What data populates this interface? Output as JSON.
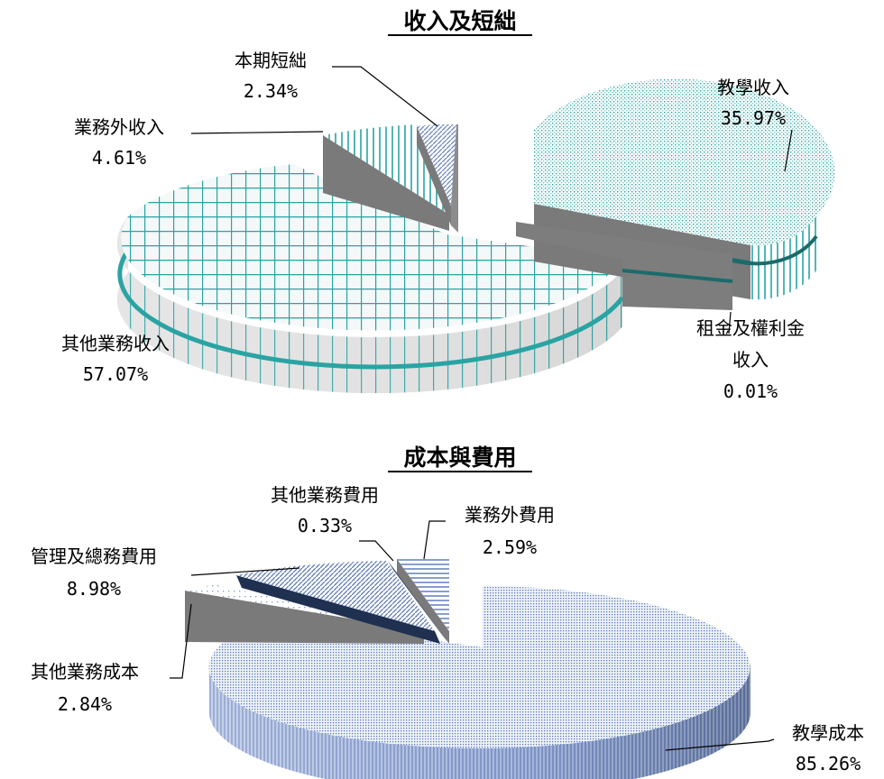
{
  "chart_data": [
    {
      "type": "pie",
      "title": "收入及短絀",
      "slices": [
        {
          "label": [
            "教學收入"
          ],
          "value": "35.97%",
          "pct": 35.97
        },
        {
          "label": [
            "租金及權利金",
            "收入"
          ],
          "value": "0.01%",
          "pct": 0.01
        },
        {
          "label": [
            "其他業務收入"
          ],
          "value": "57.07%",
          "pct": 57.07
        },
        {
          "label": [
            "業務外收入"
          ],
          "value": "4.61%",
          "pct": 4.61
        },
        {
          "label": [
            "本期短絀"
          ],
          "value": "2.34%",
          "pct": 2.34
        }
      ],
      "colors": {
        "accent": "#2aa3a3",
        "dark_band": "#1b6b6b",
        "side": "#8a8a8a"
      }
    },
    {
      "type": "pie",
      "title": "成本與費用",
      "slices": [
        {
          "label": [
            "教學成本"
          ],
          "value": "85.26%",
          "pct": 85.26
        },
        {
          "label": [
            "其他業務成本"
          ],
          "value": "2.84%",
          "pct": 2.84
        },
        {
          "label": [
            "管理及總務費用"
          ],
          "value": "8.98%",
          "pct": 8.98
        },
        {
          "label": [
            "其他業務費用"
          ],
          "value": "0.33%",
          "pct": 0.33
        },
        {
          "label": [
            "業務外費用"
          ],
          "value": "2.59%",
          "pct": 2.59
        }
      ],
      "colors": {
        "accent": "#6a86c4",
        "dark_band": "#1f3050",
        "side": "#8a8a8a"
      }
    }
  ]
}
